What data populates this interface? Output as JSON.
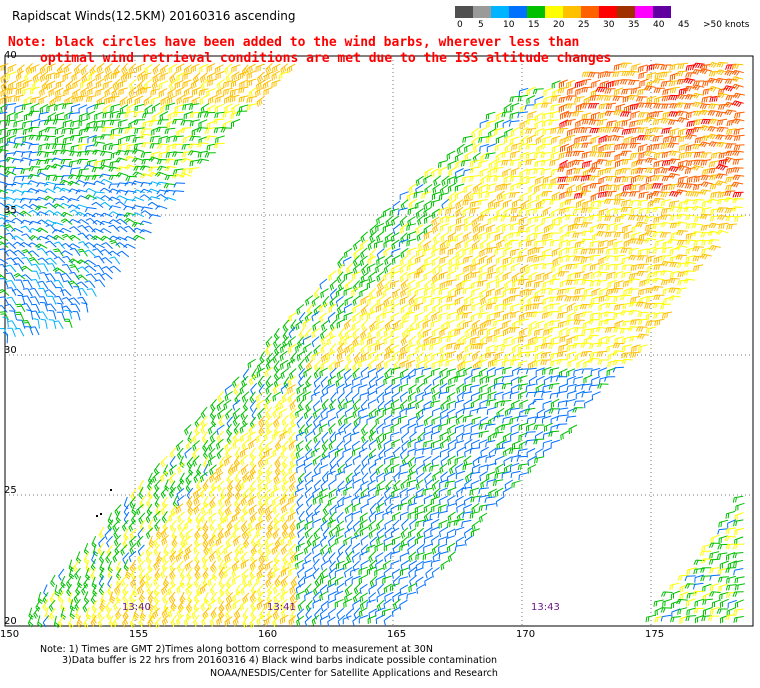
{
  "header": {
    "title": "Rapidscat Winds(12.5KM) 20160316 ascending"
  },
  "notes": [
    "Note: black circles have been added to the wind barbs, wherever less than",
    "optimal wind retrieval conditions are met due to the ISS altitude changes"
  ],
  "legend": {
    "labels": [
      "0",
      "5",
      "10",
      "15",
      "20",
      "25",
      "30",
      "35",
      "40",
      "45",
      ">50 knots"
    ],
    "colors": [
      "#505050",
      "#9a9a9a",
      "#00b4ff",
      "#0070ff",
      "#00c000",
      "#ffff00",
      "#ffc000",
      "#ff6000",
      "#ff0000",
      "#a03000",
      "#ff00ff",
      "#6000a0"
    ]
  },
  "map": {
    "lat_labels": [
      "40",
      "35",
      "30",
      "25",
      "20"
    ],
    "lon_labels": [
      "150",
      "155",
      "160",
      "165",
      "170",
      "175"
    ],
    "time_labels": [
      "13:40",
      "13:41",
      "13:43"
    ],
    "time_label_color": "#6a1b8a",
    "grid_style": "dotted"
  },
  "footer": {
    "line1": "Note: 1) Times are GMT 2)Times along bottom correspond to measurement at 30N",
    "line2": "3)Data buffer is 22 hrs from 20160316 4) Black wind barbs indicate possible contamination",
    "credit": "NOAA/NESDIS/Center for Satellite Applications and Research"
  }
}
